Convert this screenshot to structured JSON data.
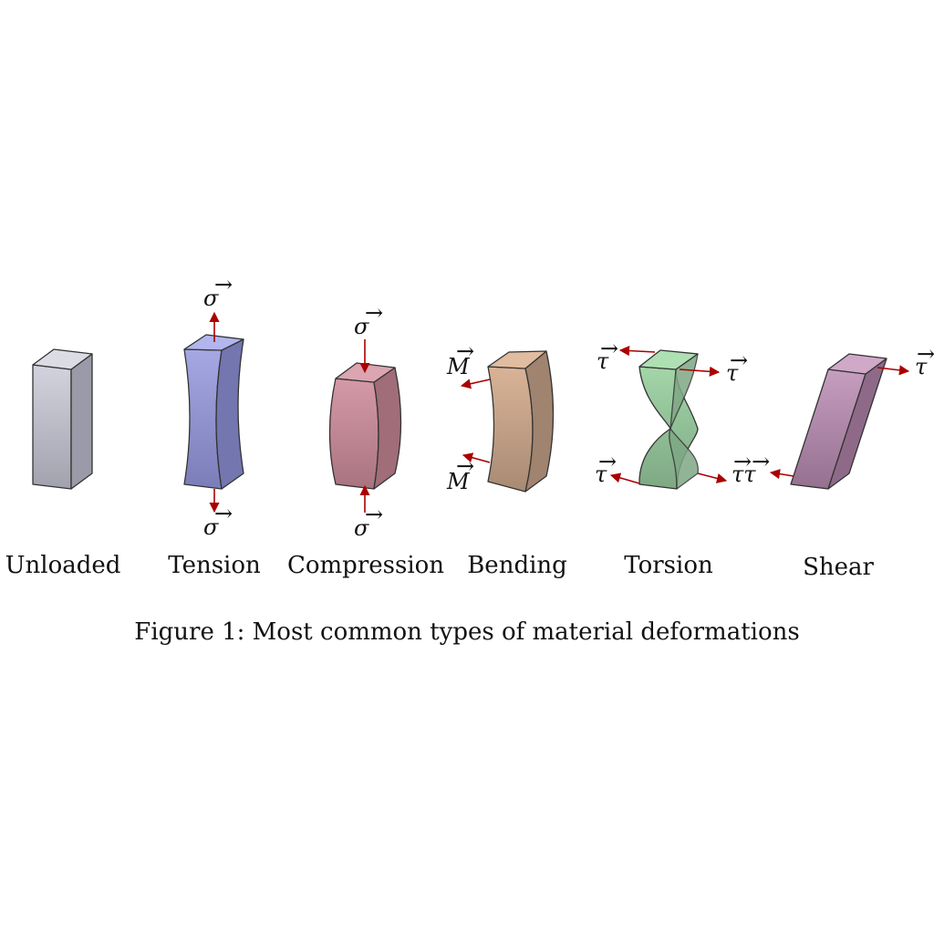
{
  "figure_caption": "Figure 1: Most common types of material deformations",
  "deformations": [
    {
      "id": "unloaded",
      "label": "Unloaded",
      "color": "#c4c4d0"
    },
    {
      "id": "tension",
      "label": "Tension",
      "color": "#9a9cd9"
    },
    {
      "id": "compression",
      "label": "Compression",
      "color": "#c98a98"
    },
    {
      "id": "bending",
      "label": "Bending",
      "color": "#c9a488"
    },
    {
      "id": "torsion",
      "label": "Torsion",
      "color": "#93c79a"
    },
    {
      "id": "shear",
      "label": "Shear",
      "color": "#b98fb0"
    }
  ],
  "symbols": {
    "sigma": "σ",
    "moment": "M",
    "tau": "τ",
    "tau_double": "ττ"
  },
  "arrow_color": "#aa0000"
}
